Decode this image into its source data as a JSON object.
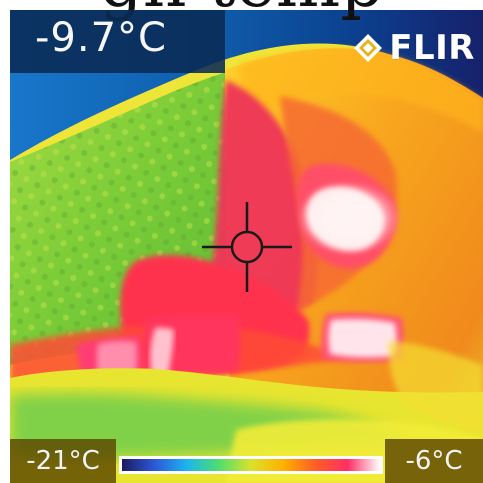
{
  "overlay": {
    "cropped_heading": "gh temp",
    "spot_temperature": "-9.7°C",
    "brand": "FLIR",
    "scale_min": "-21°C",
    "scale_max": "-6°C"
  },
  "colors": {
    "scale": [
      "#1b1b5f",
      "#2d57d8",
      "#1db4ef",
      "#4ede6c",
      "#dbe12a",
      "#ffb100",
      "#ff5d24",
      "#ff2f64",
      "#ffffff"
    ],
    "overlay_blue": "#0a2a54",
    "overlay_olive": "#5c4600"
  },
  "icons": {
    "logo": "flir-diamond-icon",
    "crosshair": "crosshair-icon"
  }
}
